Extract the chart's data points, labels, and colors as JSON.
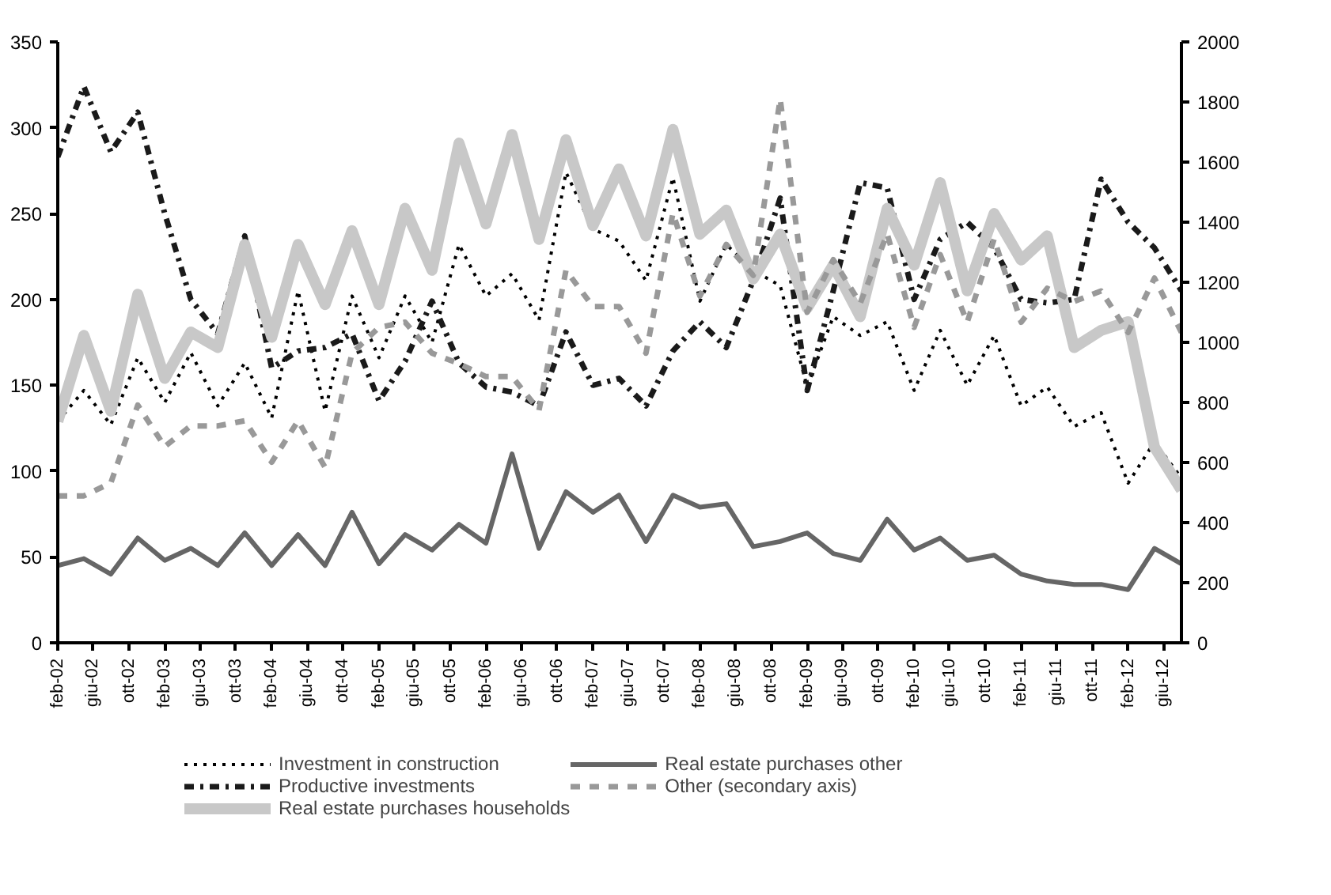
{
  "chart_data": {
    "type": "line",
    "x": [
      "2002-02",
      "2002-05",
      "2002-08",
      "2002-11",
      "2003-02",
      "2003-05",
      "2003-08",
      "2003-11",
      "2004-02",
      "2004-05",
      "2004-08",
      "2004-11",
      "2005-02",
      "2005-05",
      "2005-08",
      "2005-11",
      "2006-02",
      "2006-05",
      "2006-08",
      "2006-11",
      "2007-02",
      "2007-05",
      "2007-08",
      "2007-11",
      "2008-02",
      "2008-05",
      "2008-08",
      "2008-11",
      "2009-02",
      "2009-05",
      "2009-08",
      "2009-11",
      "2010-02",
      "2010-05",
      "2010-08",
      "2010-11",
      "2011-02",
      "2011-05",
      "2011-08",
      "2011-11",
      "2012-02",
      "2012-05",
      "2012-08"
    ],
    "series": [
      {
        "name": "Investment in construction",
        "color": "#000000",
        "line_style": "dotted",
        "values": [
          129,
          147,
          127,
          166,
          140,
          169,
          138,
          163,
          131,
          205,
          135,
          202,
          166,
          202,
          175,
          232,
          202,
          215,
          188,
          274,
          241,
          234,
          211,
          271,
          199,
          232,
          217,
          208,
          149,
          190,
          179,
          187,
          147,
          182,
          150,
          179,
          138,
          149,
          126,
          134,
          93,
          117,
          96
        ]
      },
      {
        "name": "Productive investments",
        "color": "#1a1a1a",
        "line_style": "dashdot",
        "values": [
          283,
          324,
          286,
          309,
          250,
          200,
          180,
          237,
          160,
          170,
          172,
          180,
          141,
          164,
          199,
          163,
          149,
          146,
          138,
          181,
          150,
          154,
          138,
          170,
          187,
          172,
          211,
          259,
          147,
          205,
          268,
          265,
          200,
          235,
          245,
          230,
          200,
          198,
          200,
          270,
          245,
          230,
          205
        ]
      },
      {
        "name": "Real estate purchases households",
        "color": "#c8c8c8",
        "line_style": "solid",
        "values": [
          129,
          179,
          135,
          203,
          154,
          181,
          172,
          232,
          178,
          232,
          197,
          240,
          197,
          253,
          217,
          291,
          244,
          296,
          235,
          293,
          243,
          276,
          237,
          299,
          238,
          252,
          212,
          238,
          195,
          220,
          190,
          253,
          220,
          268,
          205,
          250,
          223,
          237,
          172,
          182,
          187,
          114,
          89
        ]
      },
      {
        "name": "Real estate purchases other",
        "color": "#666666",
        "line_style": "solid",
        "values": [
          45,
          49,
          40,
          61,
          48,
          55,
          45,
          64,
          45,
          63,
          45,
          76,
          46,
          63,
          54,
          69,
          58,
          110,
          55,
          88,
          76,
          86,
          59,
          86,
          79,
          81,
          56,
          59,
          64,
          52,
          48,
          72,
          54,
          61,
          48,
          51,
          40,
          36,
          34,
          34,
          31,
          55,
          46
        ]
      },
      {
        "name": "Other (secondary axis)",
        "color": "#999999",
        "line_style": "dashed",
        "axis": "y2",
        "values": [
          489,
          489,
          532,
          791,
          653,
          722,
          722,
          739,
          601,
          739,
          584,
          964,
          1050,
          1067,
          964,
          929,
          886,
          886,
          774,
          1240,
          1119,
          1119,
          964,
          1430,
          1154,
          1326,
          1223,
          1810,
          1100,
          1275,
          1130,
          1361,
          1050,
          1292,
          1067,
          1344,
          1067,
          1180,
          1136,
          1171,
          1033,
          1214,
          1033
        ]
      }
    ],
    "xlim": [
      "2002-02",
      "2012-08"
    ],
    "xticks": [
      {
        "value": "2002-02",
        "label": "feb-02"
      },
      {
        "value": "2002-06",
        "label": "giu-02"
      },
      {
        "value": "2002-10",
        "label": "ott-02"
      },
      {
        "value": "2003-02",
        "label": "feb-03"
      },
      {
        "value": "2003-06",
        "label": "giu-03"
      },
      {
        "value": "2003-10",
        "label": "ott-03"
      },
      {
        "value": "2004-02",
        "label": "feb-04"
      },
      {
        "value": "2004-06",
        "label": "giu-04"
      },
      {
        "value": "2004-10",
        "label": "ott-04"
      },
      {
        "value": "2005-02",
        "label": "feb-05"
      },
      {
        "value": "2005-06",
        "label": "giu-05"
      },
      {
        "value": "2005-10",
        "label": "ott-05"
      },
      {
        "value": "2006-02",
        "label": "feb-06"
      },
      {
        "value": "2006-06",
        "label": "giu-06"
      },
      {
        "value": "2006-10",
        "label": "ott-06"
      },
      {
        "value": "2007-02",
        "label": "feb-07"
      },
      {
        "value": "2007-06",
        "label": "giu-07"
      },
      {
        "value": "2007-10",
        "label": "ott-07"
      },
      {
        "value": "2008-02",
        "label": "feb-08"
      },
      {
        "value": "2008-06",
        "label": "giu-08"
      },
      {
        "value": "2008-10",
        "label": "ott-08"
      },
      {
        "value": "2009-02",
        "label": "feb-09"
      },
      {
        "value": "2009-06",
        "label": "giu-09"
      },
      {
        "value": "2009-10",
        "label": "ott-09"
      },
      {
        "value": "2010-02",
        "label": "feb-10"
      },
      {
        "value": "2010-06",
        "label": "giu-10"
      },
      {
        "value": "2010-10",
        "label": "ott-10"
      },
      {
        "value": "2011-02",
        "label": "feb-11"
      },
      {
        "value": "2011-06",
        "label": "giu-11"
      },
      {
        "value": "2011-10",
        "label": "ott-11"
      },
      {
        "value": "2012-02",
        "label": "feb-12"
      },
      {
        "value": "2012-06",
        "label": "giu-12"
      }
    ],
    "ylim": [
      0,
      350
    ],
    "yticks": [
      0,
      50,
      100,
      150,
      200,
      250,
      300,
      350
    ],
    "y2lim": [
      0,
      2000
    ],
    "y2ticks": [
      0,
      200,
      400,
      600,
      800,
      1000,
      1200,
      1400,
      1600,
      1800,
      2000
    ],
    "grid": false,
    "legend": "bottom"
  }
}
